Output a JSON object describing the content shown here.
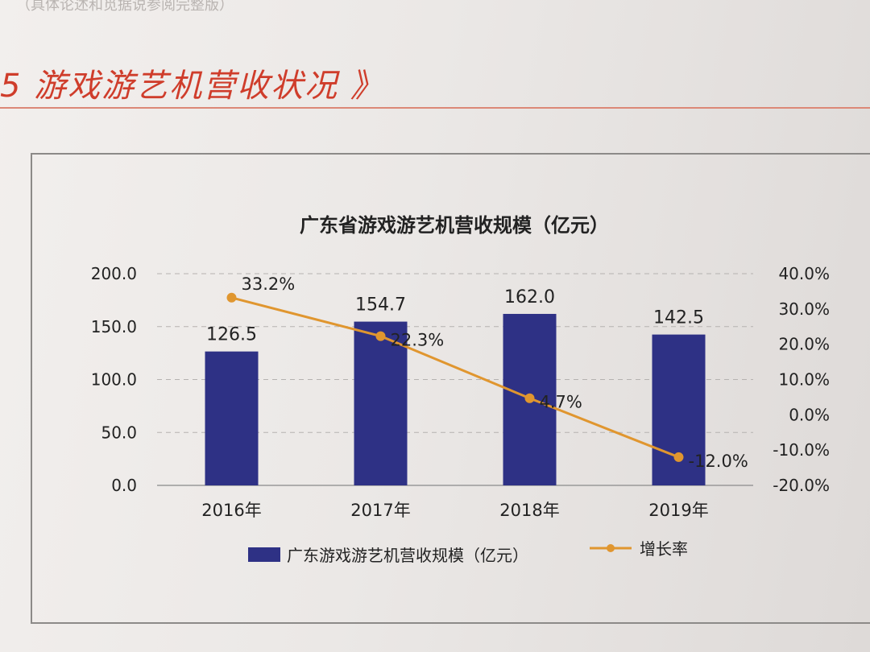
{
  "page": {
    "header_text": "（具体论述和觅据说参阅完整版）",
    "section_heading": "5 游戏游艺机营收状况 》"
  },
  "chart_data": {
    "type": "bar+line",
    "title": "广东省游戏游艺机营收规模（亿元）",
    "categories": [
      "2016年",
      "2017年",
      "2018年",
      "2019年"
    ],
    "bar_series": {
      "name": "广东游戏游艺机营收规模（亿元）",
      "values": [
        126.5,
        154.7,
        162.0,
        142.5
      ],
      "labels": [
        "126.5",
        "154.7",
        "162.0",
        "142.5"
      ],
      "color": "#2e3185"
    },
    "line_series": {
      "name": "增长率",
      "values": [
        33.2,
        22.3,
        4.7,
        -12.0
      ],
      "labels": [
        "33.2%",
        "22.3%",
        "4.7%",
        "-12.0%"
      ],
      "color": "#e0962f"
    },
    "y_left": {
      "range": [
        0,
        200
      ],
      "ticks": [
        0,
        50,
        100,
        150,
        200
      ],
      "tick_labels": [
        "0.0",
        "50.0",
        "100.0",
        "150.0",
        "200.0"
      ]
    },
    "y_right": {
      "range": [
        -20,
        40
      ],
      "ticks": [
        -20,
        -10,
        0,
        10,
        20,
        30,
        40
      ],
      "tick_labels": [
        "-20.0%",
        "-10.0%",
        "0.0%",
        "10.0%",
        "20.0%",
        "30.0%",
        "40.0%"
      ]
    },
    "grid": "dashed horizontal",
    "legend_position": "bottom"
  }
}
